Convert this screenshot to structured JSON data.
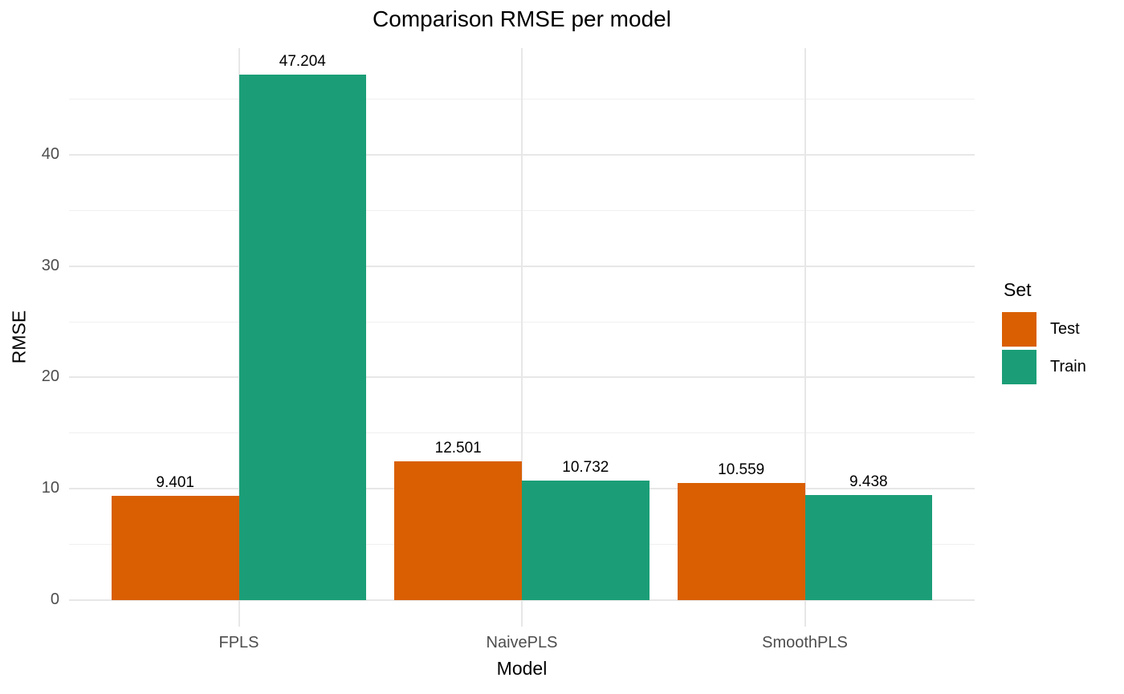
{
  "chart_data": {
    "type": "bar",
    "title": "Comparison RMSE per model",
    "xlabel": "Model",
    "ylabel": "RMSE",
    "categories": [
      "FPLS",
      "NaivePLS",
      "SmoothPLS"
    ],
    "series": [
      {
        "name": "Test",
        "color": "#D95F02",
        "values": [
          9.401,
          12.501,
          10.559
        ]
      },
      {
        "name": "Train",
        "color": "#1B9E77",
        "values": [
          47.204,
          10.732,
          9.438
        ]
      }
    ],
    "bar_label_decimals": 3,
    "y_major_ticks": [
      0,
      10,
      20,
      30,
      40
    ],
    "y_minor_ticks": [
      5,
      15,
      25,
      35,
      45
    ],
    "ylim": [
      -2.36,
      49.56
    ],
    "grid": "horizontal-major-minor, vertical-major",
    "legend_title": "Set",
    "legend_position": "right",
    "colors": {
      "background": "#FFFFFF",
      "grid_major": "#E7E7E7",
      "grid_minor": "#F0F0F0",
      "tick_label": "#4D4D4D",
      "text": "#000000"
    }
  }
}
